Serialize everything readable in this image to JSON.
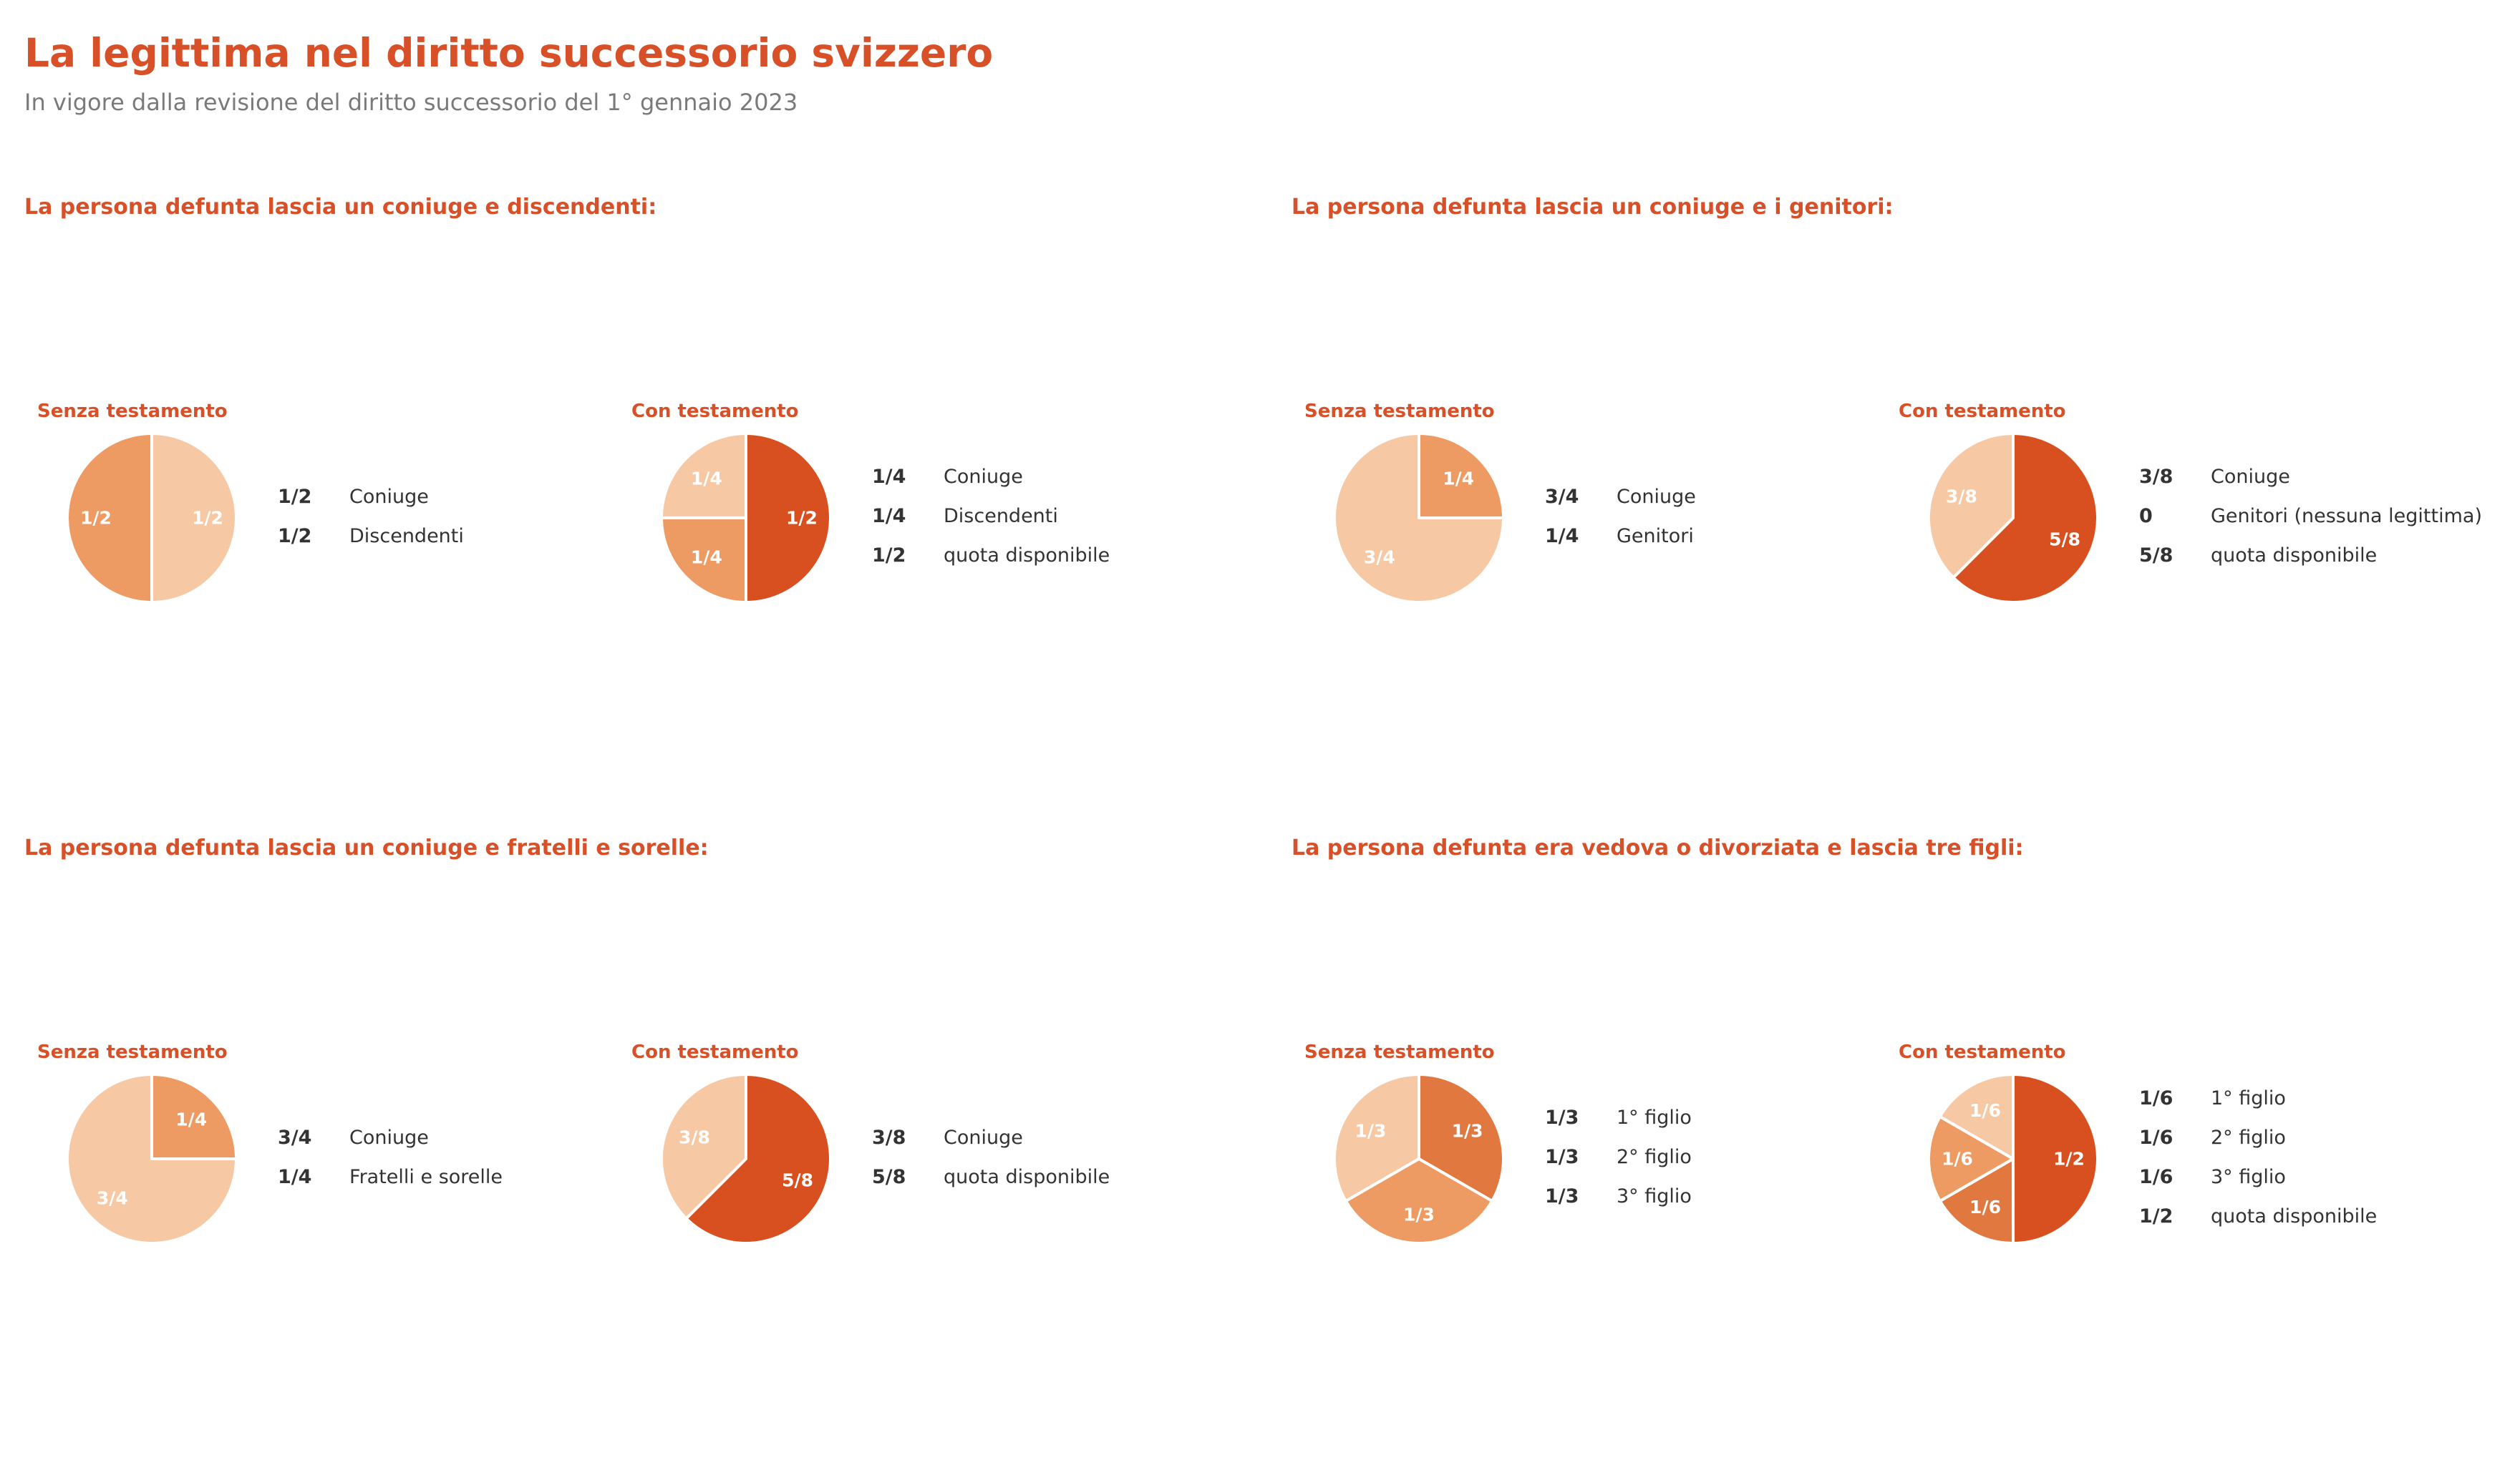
{
  "page": {
    "title": "La legittima nel diritto successorio svizzero",
    "subtitle": "In vigore dalla revisione del diritto successorio del 1° gennaio 2023"
  },
  "colors": {
    "accent": "#d85028",
    "subtitle": "#7a7a7a",
    "text": "#333333",
    "slice_light": "#f6c8a3",
    "slice_medium": "#ee9a63",
    "slice_mid_dark": "#e07840",
    "slice_dark": "#d85020",
    "slice_border": "#ffffff",
    "slice_label": "#ffffff"
  },
  "chart_data": [
    {
      "type": "pie",
      "title": "La persona defunta lascia un coniuge e discendenti:",
      "subtitle": "Senza testamento",
      "categories": [
        "Coniuge",
        "Discendenti"
      ],
      "values": [
        0.5,
        0.5
      ],
      "labels": [
        "1/2",
        "1/2"
      ],
      "colors": [
        "#ee9a63",
        "#f6c8a3"
      ]
    },
    {
      "type": "pie",
      "title": "La persona defunta lascia un coniuge e discendenti:",
      "subtitle": "Con testamento",
      "categories": [
        "Coniuge",
        "Discendenti",
        "quota disponibile"
      ],
      "values": [
        0.25,
        0.25,
        0.5
      ],
      "labels": [
        "1/4",
        "1/4",
        "1/2"
      ],
      "colors": [
        "#f6c8a3",
        "#ee9a63",
        "#d85020"
      ]
    },
    {
      "type": "pie",
      "title": "La persona defunta lascia un coniuge e i genitori:",
      "subtitle": "Senza testamento",
      "categories": [
        "Coniuge",
        "Genitori"
      ],
      "values": [
        0.75,
        0.25
      ],
      "labels": [
        "3/4",
        "1/4"
      ],
      "colors": [
        "#f6c8a3",
        "#ee9a63"
      ]
    },
    {
      "type": "pie",
      "title": "La persona defunta lascia un coniuge e i genitori:",
      "subtitle": "Con testamento",
      "categories": [
        "Coniuge",
        "Genitori (nessuna legittima)",
        "quota disponibile"
      ],
      "values": [
        0.375,
        0,
        0.625
      ],
      "labels": [
        "3/8",
        "0",
        "5/8"
      ],
      "colors": [
        "#f6c8a3",
        "#ee9a63",
        "#d85020"
      ]
    },
    {
      "type": "pie",
      "title": "La persona defunta lascia un coniuge e fratelli e sorelle:",
      "subtitle": "Senza testamento",
      "categories": [
        "Coniuge",
        "Fratelli e sorelle"
      ],
      "values": [
        0.75,
        0.25
      ],
      "labels": [
        "3/4",
        "1/4"
      ],
      "colors": [
        "#f6c8a3",
        "#ee9a63"
      ]
    },
    {
      "type": "pie",
      "title": "La persona defunta lascia un coniuge e fratelli e sorelle:",
      "subtitle": "Con testamento",
      "categories": [
        "Coniuge",
        "quota disponibile"
      ],
      "values": [
        0.375,
        0.625
      ],
      "labels": [
        "3/8",
        "5/8"
      ],
      "colors": [
        "#f6c8a3",
        "#d85020"
      ]
    },
    {
      "type": "pie",
      "title": "La persona defunta era vedova o divorziata e lascia tre figli:",
      "subtitle": "Senza testamento",
      "categories": [
        "1° figlio",
        "2° figlio",
        "3° figlio"
      ],
      "values": [
        0.3333,
        0.3333,
        0.3333
      ],
      "labels": [
        "1/3",
        "1/3",
        "1/3"
      ],
      "colors": [
        "#f6c8a3",
        "#ee9a63",
        "#e07840"
      ]
    },
    {
      "type": "pie",
      "title": "La persona defunta era vedova o divorziata e lascia tre figli:",
      "subtitle": "Con testamento",
      "categories": [
        "1° figlio",
        "2° figlio",
        "3° figlio",
        "quota disponibile"
      ],
      "values": [
        0.1667,
        0.1667,
        0.1667,
        0.5
      ],
      "labels": [
        "1/6",
        "1/6",
        "1/6",
        "1/2"
      ],
      "colors": [
        "#f6c8a3",
        "#ee9a63",
        "#e07840",
        "#d85020"
      ]
    }
  ]
}
